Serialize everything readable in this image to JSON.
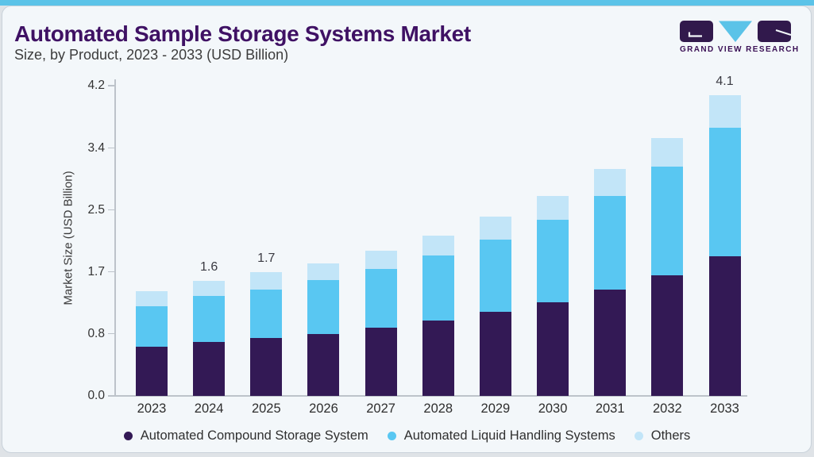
{
  "page": {
    "title": "Automated Sample Storage Systems Market",
    "subtitle": "Size, by Product, 2023 - 2033 (USD Billion)",
    "accent_color": "#5BC3E8",
    "title_color": "#3F1164",
    "card_background": "#F3F7FA"
  },
  "logo": {
    "brand": "GRAND VIEW RESEARCH",
    "block_color": "#31194C",
    "triangle_color": "#5BC3E8"
  },
  "chart_data": {
    "type": "bar",
    "stacked": true,
    "title": "Automated Sample Storage Systems Market Size, by Product, 2023 - 2033 (USD Billion)",
    "ylabel": "Market Size (USD Billion)",
    "xlabel": "",
    "ylim": [
      0,
      4.2
    ],
    "grid": false,
    "legend_position": "bottom",
    "axis_color": "#BDC3CA",
    "yticks": [
      {
        "value": 0.0,
        "label": "0.0"
      },
      {
        "value": 0.84,
        "label": "0.8"
      },
      {
        "value": 1.68,
        "label": "1.7"
      },
      {
        "value": 2.52,
        "label": "2.5"
      },
      {
        "value": 3.36,
        "label": "3.4"
      },
      {
        "value": 4.2,
        "label": "4.2"
      }
    ],
    "categories": [
      "2023",
      "2024",
      "2025",
      "2026",
      "2027",
      "2028",
      "2029",
      "2030",
      "2031",
      "2032",
      "2033"
    ],
    "series": [
      {
        "name": "Automated Compound Storage System",
        "color": "#331955",
        "values": [
          0.67,
          0.73,
          0.78,
          0.84,
          0.92,
          1.02,
          1.14,
          1.27,
          1.44,
          1.63,
          1.89
        ]
      },
      {
        "name": "Automated Liquid Handling Systems",
        "color": "#59C7F2",
        "values": [
          0.54,
          0.62,
          0.66,
          0.73,
          0.8,
          0.88,
          0.98,
          1.12,
          1.27,
          1.48,
          1.74
        ]
      },
      {
        "name": "Others",
        "color": "#C2E5F8",
        "values": [
          0.21,
          0.21,
          0.24,
          0.23,
          0.25,
          0.27,
          0.31,
          0.32,
          0.36,
          0.39,
          0.45
        ]
      }
    ],
    "bar_labels": {
      "2024": "1.6",
      "2025": "1.7",
      "2033": "4.1"
    }
  }
}
